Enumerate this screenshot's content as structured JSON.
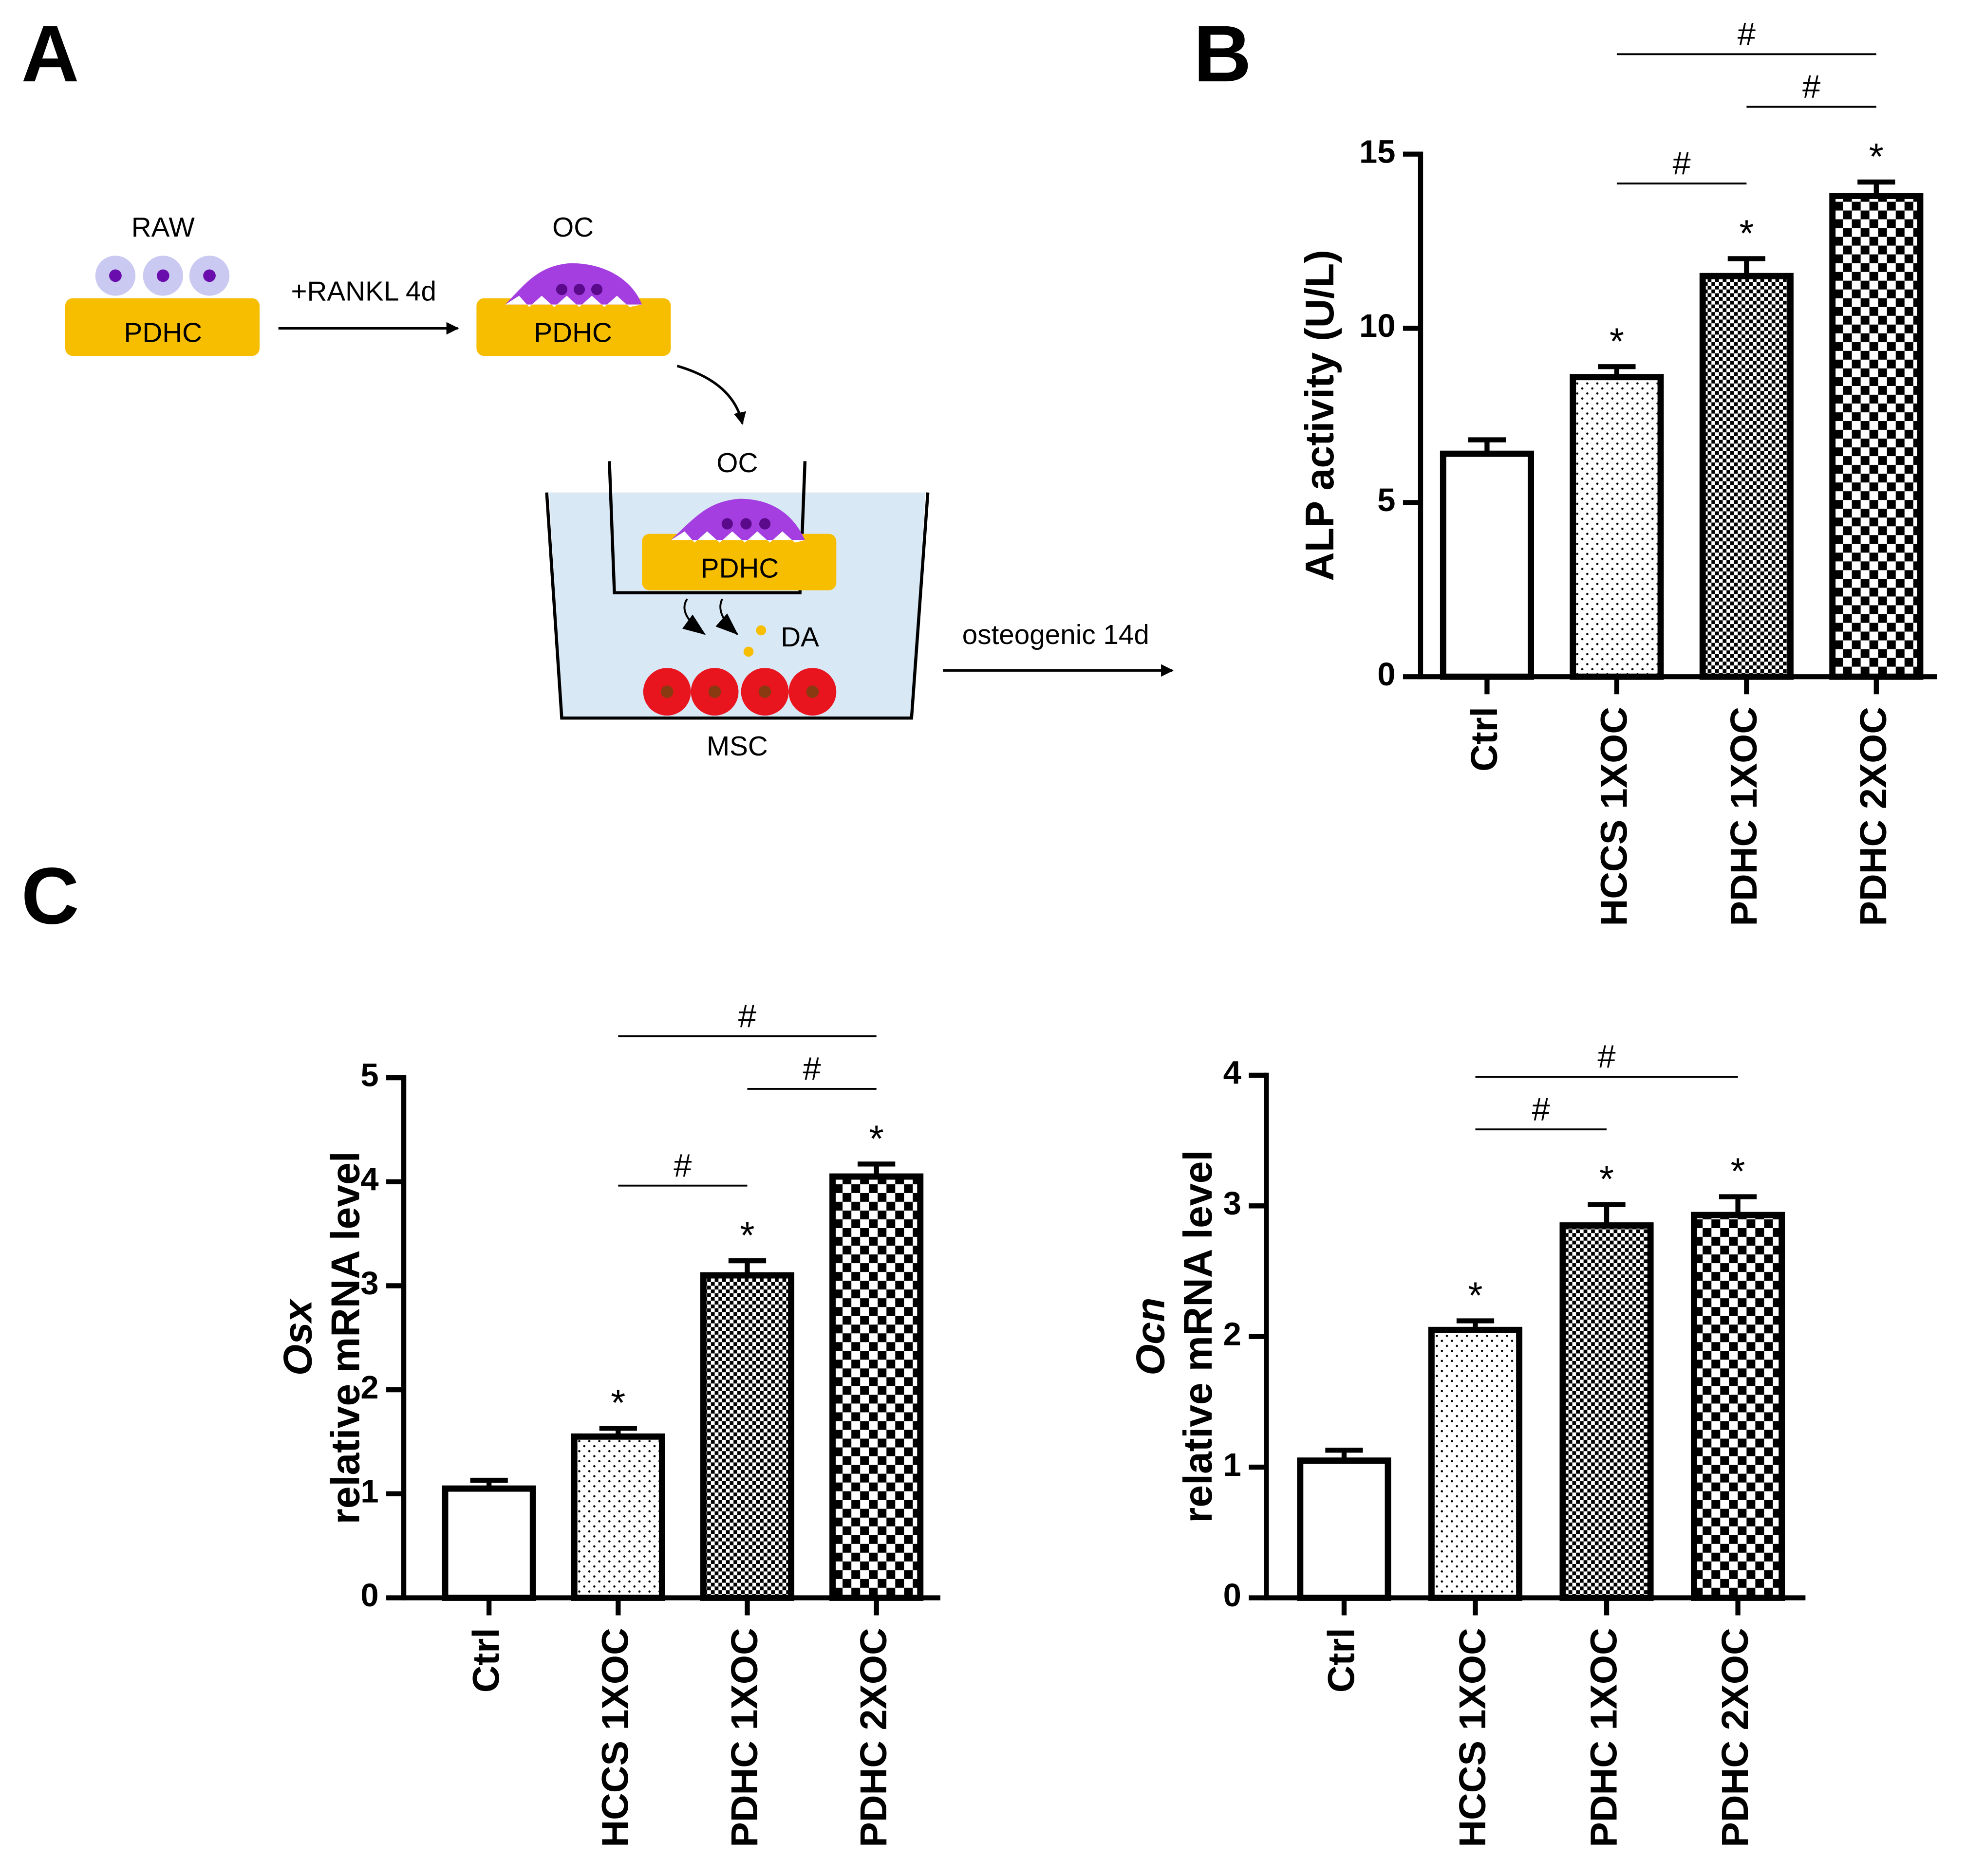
{
  "diagram": {
    "labels": {
      "raw": "RAW",
      "pdhc_1": "PDHC",
      "rankl": "+RANKL 4d",
      "oc_1": "OC",
      "pdhc_2": "PDHC",
      "oc_2": "OC",
      "pdhc_3": "PDHC",
      "da": "DA",
      "msc": "MSC",
      "osteogenic": "osteogenic 14d"
    },
    "panel": "A"
  },
  "chart_data": [
    {
      "type": "bar",
      "panel": "B",
      "ylabel": "ALP activity (U/L)",
      "categories": [
        "Ctrl",
        "HCCS 1XOC",
        "PDHC 1XOC",
        "PDHC 2XOC"
      ],
      "values": [
        6.4,
        8.6,
        11.5,
        13.8
      ],
      "errors": [
        0.4,
        0.3,
        0.5,
        0.4
      ],
      "patterns": [
        "none",
        "dots",
        "fine-checker",
        "checker"
      ],
      "significance": [
        null,
        "*",
        "*",
        "*"
      ],
      "brackets": [
        {
          "between": [
            "HCCS 1XOC",
            "PDHC 1XOC"
          ],
          "label": "#"
        },
        {
          "between": [
            "PDHC 1XOC",
            "PDHC 2XOC"
          ],
          "label": "#"
        },
        {
          "between": [
            "HCCS 1XOC",
            "PDHC 2XOC"
          ],
          "label": "#"
        }
      ],
      "ylim": [
        0,
        15
      ],
      "yticks": [
        0,
        5,
        10,
        15
      ]
    },
    {
      "type": "bar",
      "panel": "C",
      "ylabel_gene": "Osx",
      "ylabel": "relative mRNA level",
      "categories": [
        "Ctrl",
        "HCCS 1XOC",
        "PDHC 1XOC",
        "PDHC 2XOC"
      ],
      "values": [
        1.05,
        1.55,
        3.1,
        4.05
      ],
      "errors": [
        0.08,
        0.08,
        0.14,
        0.12
      ],
      "patterns": [
        "none",
        "dots",
        "fine-checker",
        "checker"
      ],
      "significance": [
        null,
        "*",
        "*",
        "*"
      ],
      "brackets": [
        {
          "between": [
            "HCCS 1XOC",
            "PDHC 1XOC"
          ],
          "label": "#"
        },
        {
          "between": [
            "PDHC 1XOC",
            "PDHC 2XOC"
          ],
          "label": "#"
        },
        {
          "between": [
            "HCCS 1XOC",
            "PDHC 2XOC"
          ],
          "label": "#"
        }
      ],
      "ylim": [
        0,
        5
      ],
      "yticks": [
        0,
        1,
        2,
        3,
        4,
        5
      ]
    },
    {
      "type": "bar",
      "ylabel_gene": "Ocn",
      "ylabel": "relative mRNA level",
      "categories": [
        "Ctrl",
        "HCCS 1XOC",
        "PDHC 1XOC",
        "PDHC 2XOC"
      ],
      "values": [
        1.05,
        2.05,
        2.85,
        2.93
      ],
      "errors": [
        0.08,
        0.07,
        0.16,
        0.14
      ],
      "patterns": [
        "none",
        "dots",
        "fine-checker",
        "checker"
      ],
      "significance": [
        null,
        "*",
        "*",
        "*"
      ],
      "brackets": [
        {
          "between": [
            "HCCS 1XOC",
            "PDHC 1XOC"
          ],
          "label": "#"
        },
        {
          "between": [
            "HCCS 1XOC",
            "PDHC 2XOC"
          ],
          "label": "#"
        }
      ],
      "ylim": [
        0,
        4
      ],
      "yticks": [
        0,
        1,
        2,
        3,
        4
      ]
    }
  ]
}
